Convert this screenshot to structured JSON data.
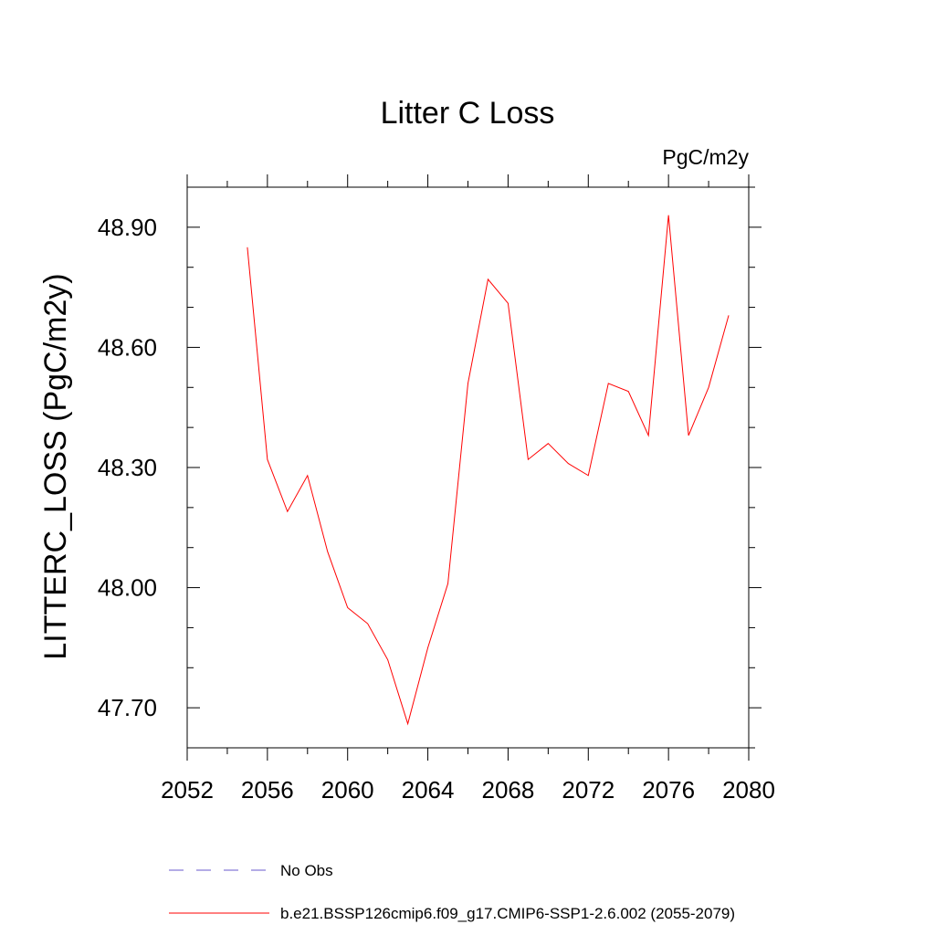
{
  "chart_data": {
    "type": "line",
    "title": "Litter C Loss",
    "units": "PgC/m2y",
    "ylabel": "LITTERC_LOSS  (PgC/m2y)",
    "xlabel": "",
    "xlim": [
      2052,
      2080
    ],
    "ylim": [
      47.6,
      49.0
    ],
    "x_ticks": [
      2052,
      2056,
      2060,
      2064,
      2068,
      2072,
      2076,
      2080
    ],
    "x_tick_labels": [
      "2052",
      "2056",
      "2060",
      "2064",
      "2068",
      "2072",
      "2076",
      "2080"
    ],
    "x_minor_ticks": [
      2054,
      2058,
      2062,
      2066,
      2070,
      2074,
      2078
    ],
    "y_ticks": [
      47.7,
      48.0,
      48.3,
      48.6,
      48.9
    ],
    "y_tick_labels": [
      "47.70",
      "48.00",
      "48.30",
      "48.60",
      "48.90"
    ],
    "y_minor_ticks": [
      47.6,
      47.8,
      47.9,
      48.1,
      48.2,
      48.4,
      48.5,
      48.7,
      48.8,
      49.0
    ],
    "grid": false,
    "legend_position": "bottom",
    "series": [
      {
        "name": "b.e21.BSSP126cmip6.f09_g17.CMIP6-SSP1-2.6.002 (2055-2079)",
        "color": "#ff0000",
        "style": "solid",
        "x": [
          2055,
          2056,
          2057,
          2058,
          2059,
          2060,
          2061,
          2062,
          2063,
          2064,
          2065,
          2066,
          2067,
          2068,
          2069,
          2070,
          2071,
          2072,
          2073,
          2074,
          2075,
          2076,
          2077,
          2078,
          2079
        ],
        "values": [
          48.85,
          48.32,
          48.19,
          48.28,
          48.09,
          47.95,
          47.91,
          47.82,
          47.66,
          47.85,
          48.01,
          48.51,
          48.77,
          48.71,
          48.32,
          48.36,
          48.31,
          48.28,
          48.51,
          48.49,
          48.38,
          48.93,
          48.38,
          48.5,
          48.68
        ]
      }
    ],
    "legend": [
      {
        "label": "No Obs",
        "color": "#6a5acd",
        "style": "dashed"
      },
      {
        "label": "b.e21.BSSP126cmip6.f09_g17.CMIP6-SSP1-2.6.002 (2055-2079)",
        "color": "#ff0000",
        "style": "solid"
      }
    ]
  }
}
